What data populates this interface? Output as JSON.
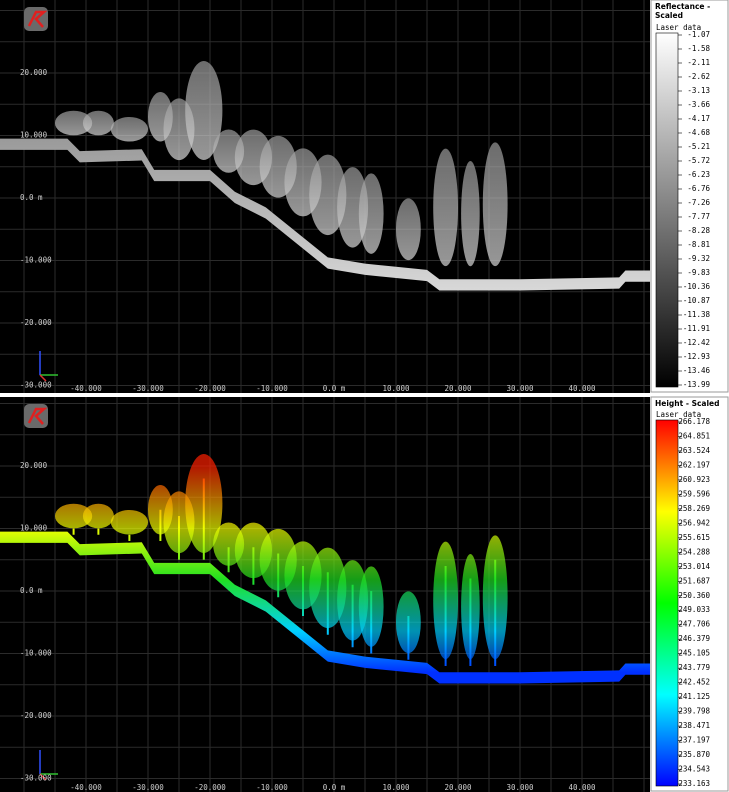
{
  "panels": [
    {
      "legend_title": [
        "Reflectance -",
        "Scaled"
      ],
      "legend_subtitle": "Laser data",
      "legend_labels": [
        "-1.07",
        "-1.58",
        "-2.11",
        "-2.62",
        "-3.13",
        "-3.66",
        "-4.17",
        "-4.68",
        "-5.21",
        "-5.72",
        "-6.23",
        "-6.76",
        "-7.26",
        "-7.77",
        "-8.28",
        "-8.81",
        "-9.32",
        "-9.83",
        "-10.36",
        "-10.87",
        "-11.38",
        "-11.91",
        "-12.42",
        "-12.93",
        "-13.46",
        "-13.99"
      ],
      "y_labels": [
        "20.000",
        "10.000",
        "0.0 m",
        "-10.000",
        "-20.000",
        "-30.000"
      ],
      "x_labels": [
        "-40.000",
        "-30.000",
        "-20.000",
        "-10.000",
        "0.0 m",
        "10.000",
        "20.000",
        "30.000",
        "40.000"
      ]
    },
    {
      "legend_title": [
        "Height - Scaled"
      ],
      "legend_subtitle": "Laser data",
      "legend_labels": [
        "266.178",
        "264.851",
        "263.524",
        "262.197",
        "260.923",
        "259.596",
        "258.269",
        "256.942",
        "255.615",
        "254.288",
        "253.014",
        "251.687",
        "250.360",
        "249.033",
        "247.706",
        "246.379",
        "245.105",
        "243.779",
        "242.452",
        "241.125",
        "239.798",
        "238.471",
        "237.197",
        "235.870",
        "234.543",
        "233.163"
      ],
      "y_labels": [
        "20.000",
        "10.000",
        "0.0 m",
        "-10.000",
        "-20.000",
        "-30.000"
      ],
      "x_labels": [
        "-40.000",
        "-30.000",
        "-20.000",
        "-10.000",
        "0.0 m",
        "10.000",
        "20.000",
        "30.000",
        "40.000"
      ]
    }
  ]
}
